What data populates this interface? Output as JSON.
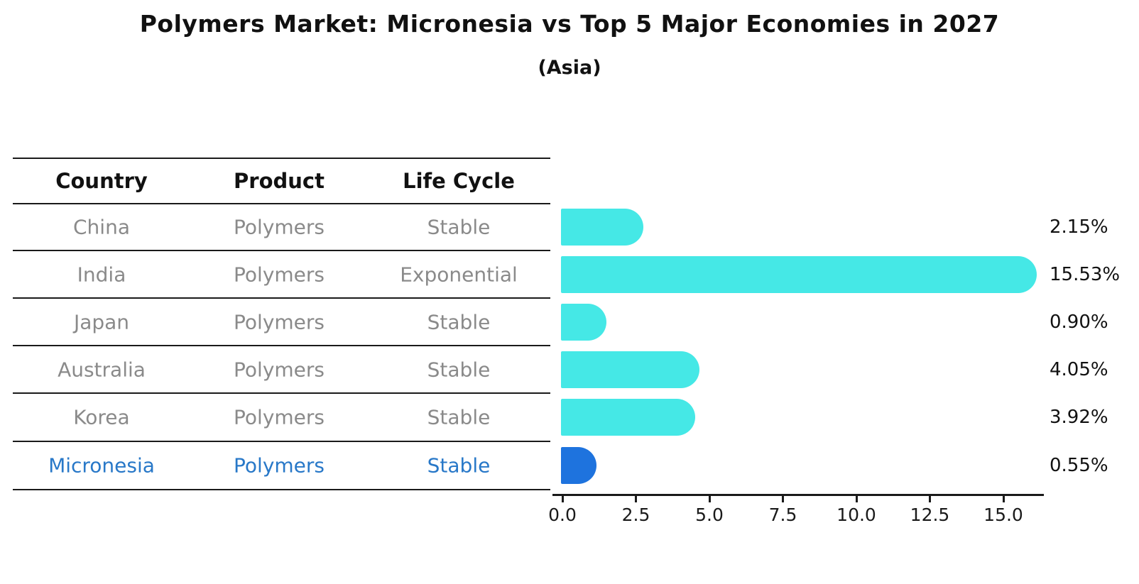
{
  "page": {
    "title": "Polymers Market: Micronesia vs Top 5 Major Economies in 2027",
    "subtitle": "(Asia)"
  },
  "table": {
    "headers": [
      "Country",
      "Product",
      "Life Cycle"
    ],
    "rows": [
      {
        "country": "China",
        "product": "Polymers",
        "life_cycle": "Stable",
        "highlight": false
      },
      {
        "country": "India",
        "product": "Polymers",
        "life_cycle": "Exponential",
        "highlight": false
      },
      {
        "country": "Japan",
        "product": "Polymers",
        "life_cycle": "Stable",
        "highlight": false
      },
      {
        "country": "Australia",
        "product": "Polymers",
        "life_cycle": "Stable",
        "highlight": false
      },
      {
        "country": "Korea",
        "product": "Polymers",
        "life_cycle": "Stable",
        "highlight": false
      },
      {
        "country": "Micronesia",
        "product": "Polymers",
        "life_cycle": "Stable",
        "highlight": true
      }
    ]
  },
  "chart_data": {
    "type": "bar",
    "orientation": "horizontal",
    "title": "Polymers Market: Micronesia vs Top 5 Major Economies in 2027",
    "subtitle": "(Asia)",
    "categories": [
      "China",
      "India",
      "Japan",
      "Australia",
      "Korea",
      "Micronesia"
    ],
    "values": [
      2.15,
      15.53,
      0.9,
      4.05,
      3.92,
      0.55
    ],
    "value_labels": [
      "2.15%",
      "15.53%",
      "0.90%",
      "4.05%",
      "3.92%",
      "0.55%"
    ],
    "x_ticks": [
      0.0,
      2.5,
      5.0,
      7.5,
      10.0,
      12.5,
      15.0
    ],
    "x_tick_labels": [
      "0.0",
      "2.5",
      "5.0",
      "7.5",
      "10.0",
      "12.5",
      "15.0"
    ],
    "xlim": [
      0,
      16.4
    ],
    "grid": false,
    "legend": false,
    "bar_color": "#45e8e6",
    "highlight_color": "#1e73de",
    "highlight_index": 5
  },
  "colors": {
    "text": "#111111",
    "muted_text": "#8a8a8a",
    "highlight_text": "#2878c8",
    "line": "#1a1a1a"
  }
}
